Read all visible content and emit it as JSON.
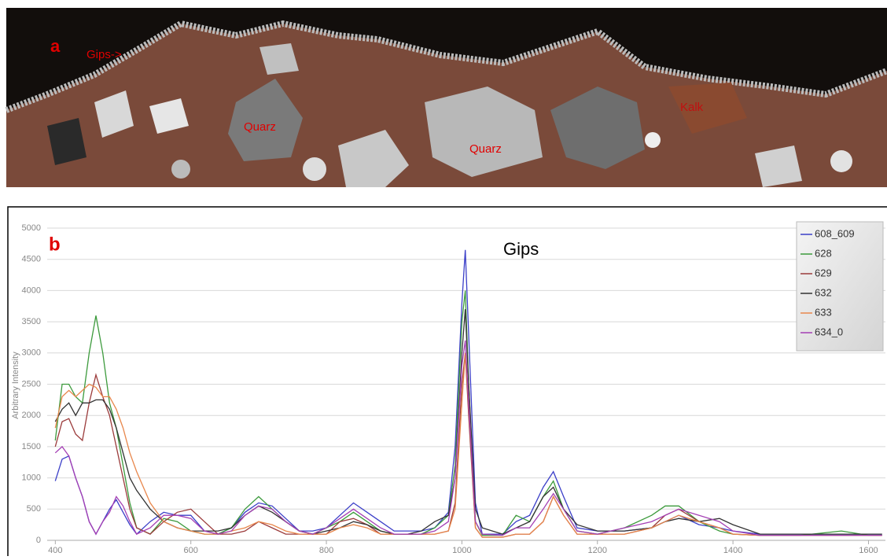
{
  "panel_a": {
    "label": "a",
    "annotations": [
      "Gips->",
      "Quarz",
      "Quarz",
      "Kalk"
    ]
  },
  "chart_data": {
    "type": "line",
    "panel_label": "b",
    "annotation": "Gips",
    "ylabel": "Arbitrary Intensity",
    "x": [
      400,
      410,
      420,
      430,
      440,
      450,
      460,
      470,
      480,
      490,
      500,
      510,
      520,
      540,
      560,
      580,
      600,
      620,
      640,
      660,
      680,
      700,
      720,
      740,
      760,
      780,
      800,
      820,
      840,
      860,
      880,
      900,
      920,
      940,
      960,
      980,
      990,
      1000,
      1005,
      1010,
      1020,
      1030,
      1060,
      1080,
      1100,
      1120,
      1135,
      1150,
      1170,
      1200,
      1240,
      1280,
      1300,
      1320,
      1350,
      1380,
      1400,
      1440,
      1500,
      1560,
      1600,
      1620
    ],
    "series": [
      {
        "name": "608_609",
        "color": "#3b3fc8",
        "values": [
          950,
          1300,
          1350,
          1000,
          700,
          300,
          100,
          300,
          500,
          650,
          450,
          250,
          100,
          300,
          450,
          400,
          400,
          150,
          100,
          200,
          450,
          600,
          550,
          350,
          150,
          150,
          200,
          400,
          600,
          450,
          300,
          150,
          150,
          150,
          200,
          450,
          1500,
          3800,
          4650,
          3300,
          600,
          100,
          100,
          300,
          400,
          850,
          1100,
          700,
          200,
          150,
          150,
          200,
          300,
          400,
          250,
          200,
          150,
          100,
          100,
          100,
          100,
          100
        ]
      },
      {
        "name": "628",
        "color": "#3c9a3c",
        "values": [
          1600,
          2500,
          2500,
          2300,
          2200,
          3000,
          3600,
          3000,
          2200,
          1800,
          1200,
          600,
          200,
          100,
          350,
          300,
          150,
          100,
          100,
          200,
          500,
          700,
          500,
          300,
          150,
          100,
          200,
          300,
          450,
          300,
          150,
          100,
          100,
          100,
          200,
          400,
          1200,
          3500,
          4000,
          2500,
          300,
          80,
          80,
          400,
          300,
          700,
          950,
          500,
          150,
          100,
          200,
          400,
          550,
          550,
          300,
          150,
          100,
          80,
          80,
          150,
          80,
          80
        ]
      },
      {
        "name": "629",
        "color": "#9b3b3b",
        "values": [
          1500,
          1900,
          1950,
          1700,
          1600,
          2200,
          2650,
          2300,
          2000,
          1500,
          1000,
          500,
          200,
          100,
          300,
          450,
          500,
          300,
          100,
          100,
          150,
          300,
          200,
          100,
          100,
          100,
          100,
          300,
          350,
          250,
          100,
          100,
          100,
          100,
          100,
          150,
          600,
          2500,
          3000,
          2000,
          200,
          50,
          50,
          100,
          100,
          300,
          700,
          400,
          100,
          100,
          100,
          200,
          400,
          500,
          300,
          200,
          100,
          80,
          80,
          80,
          80,
          80
        ]
      },
      {
        "name": "632",
        "color": "#333333",
        "values": [
          1900,
          2100,
          2200,
          2000,
          2200,
          2200,
          2250,
          2250,
          2100,
          1800,
          1400,
          1000,
          800,
          500,
          300,
          200,
          150,
          150,
          150,
          200,
          400,
          550,
          450,
          300,
          150,
          100,
          150,
          200,
          300,
          250,
          150,
          100,
          100,
          150,
          300,
          400,
          1000,
          3000,
          3700,
          2500,
          500,
          200,
          100,
          200,
          300,
          700,
          850,
          500,
          250,
          150,
          150,
          200,
          300,
          350,
          300,
          350,
          250,
          100,
          100,
          100,
          100,
          100
        ]
      },
      {
        "name": "633",
        "color": "#e8874c",
        "values": [
          1800,
          2300,
          2400,
          2300,
          2400,
          2500,
          2450,
          2300,
          2300,
          2100,
          1800,
          1400,
          1100,
          600,
          300,
          200,
          150,
          100,
          100,
          150,
          200,
          300,
          250,
          150,
          100,
          100,
          100,
          200,
          250,
          200,
          100,
          100,
          100,
          100,
          100,
          150,
          500,
          2200,
          3000,
          2200,
          200,
          50,
          50,
          100,
          100,
          300,
          700,
          400,
          100,
          100,
          100,
          200,
          300,
          400,
          300,
          200,
          100,
          80,
          80,
          80,
          80,
          80
        ]
      },
      {
        "name": "634_0",
        "color": "#a43fb4",
        "values": [
          1400,
          1500,
          1350,
          1000,
          700,
          300,
          100,
          300,
          450,
          700,
          550,
          300,
          100,
          200,
          400,
          400,
          350,
          150,
          100,
          150,
          400,
          550,
          500,
          300,
          150,
          100,
          200,
          350,
          500,
          350,
          200,
          100,
          100,
          100,
          150,
          300,
          1000,
          2800,
          3200,
          2200,
          300,
          100,
          80,
          200,
          200,
          500,
          750,
          500,
          150,
          100,
          200,
          300,
          400,
          500,
          400,
          300,
          150,
          80,
          80,
          80,
          80,
          80
        ]
      }
    ],
    "xlim": [
      388,
      1625
    ],
    "ylim": [
      0,
      5000
    ],
    "xticks": [
      400,
      600,
      800,
      1000,
      1200,
      1400,
      1600
    ],
    "yticks": [
      0,
      500,
      1000,
      1500,
      2000,
      2500,
      3000,
      3500,
      4000,
      4500,
      5000
    ],
    "grid": true,
    "legend": "top-right"
  }
}
